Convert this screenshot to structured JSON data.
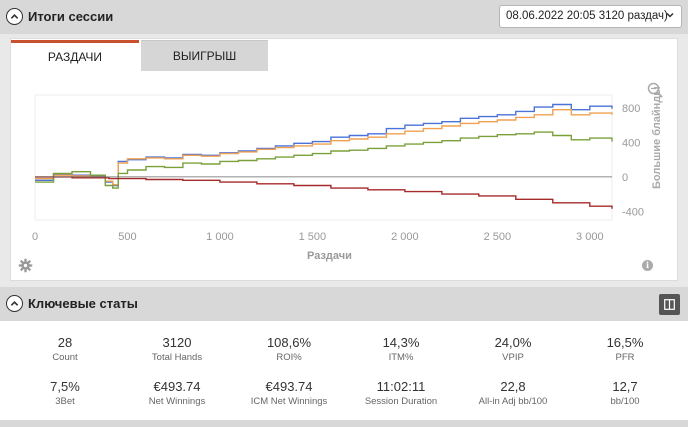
{
  "session_summary": {
    "title": "Итоги сессии",
    "session_select_value": "08.06.2022 20:05 3120 раздач)"
  },
  "tabs": [
    {
      "label": "РАЗДАЧИ",
      "active": true
    },
    {
      "label": "ВЫИГРЫШ",
      "active": false
    }
  ],
  "chart_data": {
    "type": "line",
    "xlabel": "Раздачи",
    "ylabel": "Большие блайнды",
    "xlim": [
      0,
      3120
    ],
    "ylim": [
      -500,
      950
    ],
    "x_ticks": [
      "0",
      "500",
      "1 000",
      "1 500",
      "2 000",
      "2 500",
      "3 000"
    ],
    "x_tick_values": [
      0,
      500,
      1000,
      1500,
      2000,
      2500,
      3000
    ],
    "y_ticks": [
      "800",
      "400",
      "0",
      "-400"
    ],
    "y_tick_values": [
      800,
      400,
      0,
      -400
    ],
    "grid": false,
    "series": [
      {
        "color": "#4a72d8",
        "x": [
          0,
          100,
          200,
          300,
          380,
          420,
          450,
          500,
          600,
          700,
          800,
          900,
          1000,
          1100,
          1200,
          1300,
          1400,
          1500,
          1600,
          1700,
          1800,
          1900,
          2000,
          2100,
          2200,
          2300,
          2400,
          2500,
          2600,
          2700,
          2800,
          2900,
          3000,
          3120
        ],
        "y": [
          -40,
          30,
          20,
          10,
          -60,
          -100,
          180,
          200,
          230,
          220,
          260,
          250,
          280,
          300,
          330,
          360,
          390,
          410,
          460,
          480,
          500,
          560,
          600,
          620,
          640,
          680,
          700,
          720,
          760,
          810,
          840,
          780,
          820,
          790
        ]
      },
      {
        "color": "#f0a050",
        "x": [
          0,
          100,
          200,
          300,
          380,
          420,
          450,
          500,
          600,
          700,
          800,
          900,
          1000,
          1100,
          1200,
          1300,
          1400,
          1500,
          1600,
          1700,
          1800,
          1900,
          2000,
          2100,
          2200,
          2300,
          2400,
          2500,
          2600,
          2700,
          2800,
          2900,
          3000,
          3120
        ],
        "y": [
          -20,
          20,
          10,
          0,
          -50,
          -90,
          160,
          210,
          220,
          210,
          250,
          240,
          270,
          290,
          320,
          340,
          360,
          380,
          420,
          440,
          460,
          500,
          530,
          560,
          590,
          620,
          640,
          660,
          690,
          720,
          780,
          720,
          740,
          720
        ]
      },
      {
        "color": "#7aa03a",
        "x": [
          0,
          100,
          200,
          300,
          380,
          420,
          450,
          500,
          600,
          700,
          800,
          900,
          1000,
          1100,
          1200,
          1300,
          1400,
          1500,
          1600,
          1700,
          1800,
          1900,
          2000,
          2100,
          2200,
          2300,
          2400,
          2500,
          2600,
          2700,
          2800,
          2900,
          3000,
          3120
        ],
        "y": [
          -60,
          40,
          60,
          20,
          -100,
          -130,
          40,
          80,
          120,
          110,
          160,
          150,
          180,
          190,
          210,
          230,
          250,
          270,
          300,
          310,
          330,
          360,
          380,
          400,
          420,
          450,
          470,
          490,
          500,
          520,
          480,
          430,
          450,
          410
        ]
      },
      {
        "color": "#a52a2a",
        "x": [
          0,
          200,
          400,
          600,
          800,
          1000,
          1200,
          1400,
          1600,
          1800,
          2000,
          2200,
          2400,
          2600,
          2800,
          3000,
          3120
        ],
        "y": [
          0,
          -10,
          -20,
          -30,
          -40,
          -60,
          -80,
          -100,
          -130,
          -150,
          -170,
          -200,
          -220,
          -260,
          -300,
          -340,
          -370
        ]
      },
      {
        "color": "#666666",
        "x": [
          0,
          3120
        ],
        "y": [
          0,
          0
        ]
      }
    ]
  },
  "key_stats": {
    "title": "Ключевые статы",
    "stats": [
      {
        "value": "28",
        "label": "Count"
      },
      {
        "value": "3120",
        "label": "Total Hands"
      },
      {
        "value": "108,6%",
        "label": "ROI%"
      },
      {
        "value": "14,3%",
        "label": "ITM%"
      },
      {
        "value": "24,0%",
        "label": "VPIP"
      },
      {
        "value": "16,5%",
        "label": "PFR"
      },
      {
        "value": "7,5%",
        "label": "3Bet"
      },
      {
        "value": "€493.74",
        "label": "Net Winnings"
      },
      {
        "value": "€493.74",
        "label": "ICM Net Winnings"
      },
      {
        "value": "11:02:11",
        "label": "Session Duration"
      },
      {
        "value": "22,8",
        "label": "All-in Adj bb/100"
      },
      {
        "value": "12,7",
        "label": "bb/100"
      }
    ]
  }
}
